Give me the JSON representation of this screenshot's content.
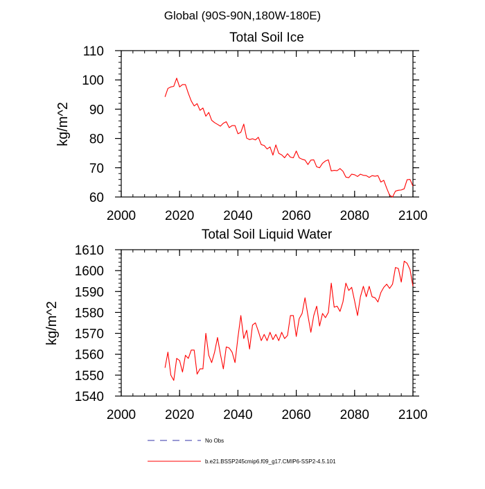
{
  "page_title": "Global (90S-90N,180W-180E)",
  "colors": {
    "series": "#ff0000",
    "obs": "#3333aa",
    "axis": "#000000"
  },
  "legend": {
    "obs_label": "No Obs",
    "model_label": "b.e21.BSSP245cmip6.f09_g17.CMIP6-SSP2-4.5.101"
  },
  "chart_data": [
    {
      "type": "line",
      "title": "Total Soil Ice",
      "xlabel": "",
      "ylabel": "kg/m^2",
      "xlim": [
        2000,
        2100
      ],
      "ylim": [
        60,
        110
      ],
      "x_major_ticks": [
        2000,
        2020,
        2040,
        2060,
        2080,
        2100
      ],
      "y_major_ticks": [
        60,
        70,
        80,
        90,
        100,
        110
      ],
      "x_minor_step": 4,
      "y_minor_step": 2,
      "series": [
        {
          "name": "b.e21.BSSP245cmip6.f09_g17.CMIP6-SSP2-4.5.101",
          "x_start": 2015,
          "values": [
            94.2,
            97.1,
            97.6,
            97.8,
            100.6,
            97.6,
            98.4,
            98.4,
            95.4,
            92.8,
            91.1,
            91.9,
            89.6,
            90.4,
            87.6,
            88.9,
            86.2,
            85.4,
            84.8,
            84.2,
            85.2,
            85.7,
            83.7,
            84.4,
            84.4,
            81.6,
            82.1,
            84.9,
            80.1,
            79.6,
            79.9,
            79.5,
            80.4,
            77.9,
            77.6,
            76.4,
            77.1,
            74.3,
            77.8,
            74.9,
            74.4,
            73.4,
            74.8,
            73.6,
            73.4,
            75.7,
            73.4,
            72.9,
            72.6,
            71.1,
            72.6,
            72.7,
            70.3,
            70.0,
            71.5,
            72.3,
            72.7,
            68.9,
            69.1,
            69.0,
            69.7,
            68.8,
            66.8,
            66.6,
            67.8,
            67.6,
            67.0,
            67.8,
            67.4,
            67.3,
            66.7,
            67.3,
            67.1,
            67.3,
            65.1,
            65.7,
            63.0,
            60.6,
            60.0,
            62.0,
            62.3,
            62.4,
            62.8,
            65.9,
            66.0,
            63.7
          ]
        }
      ]
    },
    {
      "type": "line",
      "title": "Total Soil Liquid Water",
      "xlabel": "",
      "ylabel": "kg/m^2",
      "xlim": [
        2000,
        2100
      ],
      "ylim": [
        1540,
        1610
      ],
      "x_major_ticks": [
        2000,
        2020,
        2040,
        2060,
        2080,
        2100
      ],
      "y_major_ticks": [
        1540,
        1550,
        1560,
        1570,
        1580,
        1590,
        1600,
        1610
      ],
      "x_minor_step": 4,
      "y_minor_step": 2,
      "series": [
        {
          "name": "b.e21.BSSP245cmip6.f09_g17.CMIP6-SSP2-4.5.101",
          "x_start": 2015,
          "values": [
            1553.5,
            1561.0,
            1550.0,
            1547.5,
            1558.0,
            1557.0,
            1551.5,
            1559.5,
            1558.0,
            1562.0,
            1562.0,
            1550.5,
            1553.0,
            1553.0,
            1570.0,
            1559.5,
            1556.0,
            1561.0,
            1568.0,
            1560.0,
            1553.0,
            1563.5,
            1563.0,
            1561.0,
            1556.0,
            1568.0,
            1578.5,
            1567.5,
            1571.5,
            1562.5,
            1574.0,
            1575.0,
            1571.0,
            1566.5,
            1569.5,
            1566.5,
            1570.5,
            1567.0,
            1569.5,
            1566.5,
            1570.5,
            1567.5,
            1569.0,
            1578.5,
            1578.5,
            1568.5,
            1577.0,
            1579.5,
            1587.0,
            1578.5,
            1570.5,
            1578.5,
            1583.0,
            1573.5,
            1579.5,
            1577.5,
            1580.0,
            1594.0,
            1582.5,
            1583.0,
            1580.5,
            1585.0,
            1594.0,
            1590.5,
            1592.0,
            1585.5,
            1578.5,
            1587.5,
            1592.5,
            1587.5,
            1592.5,
            1587.5,
            1587.0,
            1585.0,
            1589.5,
            1592.0,
            1593.5,
            1591.5,
            1593.5,
            1601.5,
            1601.0,
            1594.5,
            1604.5,
            1603.5,
            1600.5,
            1592.5
          ]
        }
      ]
    }
  ]
}
